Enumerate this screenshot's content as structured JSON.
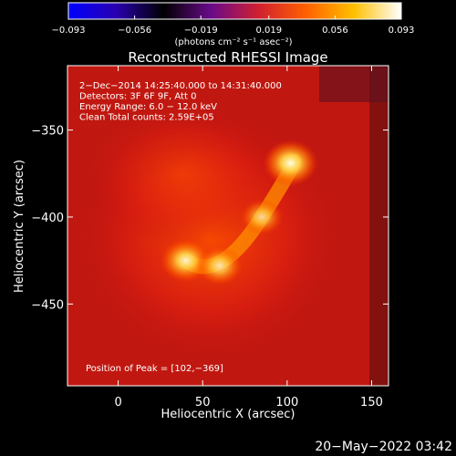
{
  "chart_data": {
    "type": "heatmap",
    "title": "Reconstructed RHESSI Image",
    "xlabel": "Heliocentric X (arcsec)",
    "ylabel": "Heliocentric Y (arcsec)",
    "xlim": [
      -30,
      160
    ],
    "ylim": [
      -497,
      -313
    ],
    "xticks": [
      0,
      50,
      100,
      150
    ],
    "yticks": [
      -350,
      -400,
      -450
    ],
    "colorbar": {
      "range": [
        -0.093,
        0.093
      ],
      "tick_values": [
        -0.093,
        -0.056,
        -0.019,
        0.019,
        0.056,
        0.093
      ],
      "tick_labels": [
        "−0.093",
        "−0.056",
        "−0.019",
        "0.019",
        "0.056",
        "0.093"
      ],
      "units_label": "(photons cm⁻² s⁻¹ asec⁻²)",
      "colormap": [
        "#0000ff",
        "#2a00b0",
        "#000000",
        "#6a0a8a",
        "#d02030",
        "#ff6000",
        "#ffc000",
        "#ffffff"
      ]
    },
    "annotations": [
      " 2−Dec−2014 14:25:40.000 to 14:31:40.000",
      "Detectors: 3F 6F 9F, Att 0",
      "Energy Range: 6.0 − 12.0 keV",
      "Clean     Total counts: 2.59E+05"
    ],
    "peak_label": "Position of Peak = [102,−369]",
    "peak_position": [
      102,
      -369
    ],
    "sources": [
      {
        "x": 102,
        "y": -369,
        "peak": 1.0
      },
      {
        "x": 40,
        "y": -425,
        "peak": 0.92
      },
      {
        "x": 60,
        "y": -428,
        "peak": 0.8
      },
      {
        "x": 85,
        "y": -400,
        "peak": 0.7
      }
    ]
  },
  "footer": {
    "date": "20−May−2022 03:42"
  }
}
